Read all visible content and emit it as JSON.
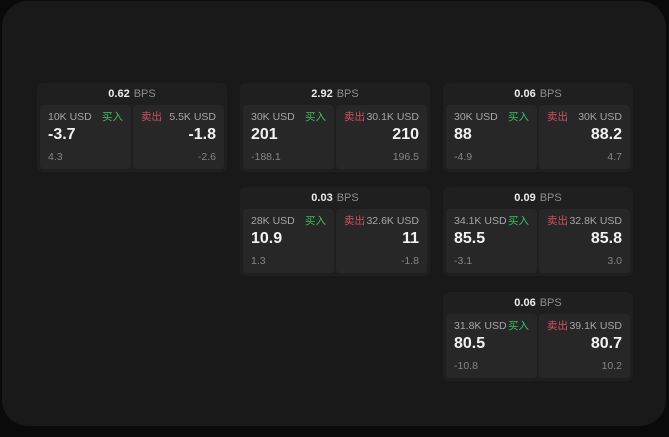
{
  "labels": {
    "buy": "买入",
    "sell": "卖出",
    "bps": "BPS"
  },
  "colors": {
    "buy": "#3fbf63",
    "sell": "#d04f63",
    "card_bg": "#1f1f1f",
    "panel_bg": "#272727",
    "window_bg": "#191919",
    "page_bg": "#0a0a0a"
  },
  "cards": [
    {
      "col": 1,
      "row": 1,
      "bps": "0.62",
      "buy": {
        "amount": "10K USD",
        "value": "-3.7",
        "sub": "4.3"
      },
      "sell": {
        "amount": "5.5K USD",
        "value": "-1.8",
        "sub": "-2.6"
      }
    },
    {
      "col": 2,
      "row": 1,
      "bps": "2.92",
      "buy": {
        "amount": "30K USD",
        "value": "201",
        "sub": "-188.1"
      },
      "sell": {
        "amount": "30.1K USD",
        "value": "210",
        "sub": "196.5"
      }
    },
    {
      "col": 3,
      "row": 1,
      "bps": "0.06",
      "buy": {
        "amount": "30K USD",
        "value": "88",
        "sub": "-4.9"
      },
      "sell": {
        "amount": "30K USD",
        "value": "88.2",
        "sub": "4.7"
      }
    },
    {
      "col": 2,
      "row": 2,
      "bps": "0.03",
      "buy": {
        "amount": "28K USD",
        "value": "10.9",
        "sub": "1.3"
      },
      "sell": {
        "amount": "32.6K USD",
        "value": "11",
        "sub": "-1.8"
      }
    },
    {
      "col": 3,
      "row": 2,
      "bps": "0.09",
      "buy": {
        "amount": "34.1K USD",
        "value": "85.5",
        "sub": "-3.1"
      },
      "sell": {
        "amount": "32.8K USD",
        "value": "85.8",
        "sub": "3.0"
      }
    },
    {
      "col": 3,
      "row": 3,
      "bps": "0.06",
      "buy": {
        "amount": "31.8K USD",
        "value": "80.5",
        "sub": "-10.8"
      },
      "sell": {
        "amount": "39.1K USD",
        "value": "80.7",
        "sub": "10.2"
      }
    }
  ]
}
